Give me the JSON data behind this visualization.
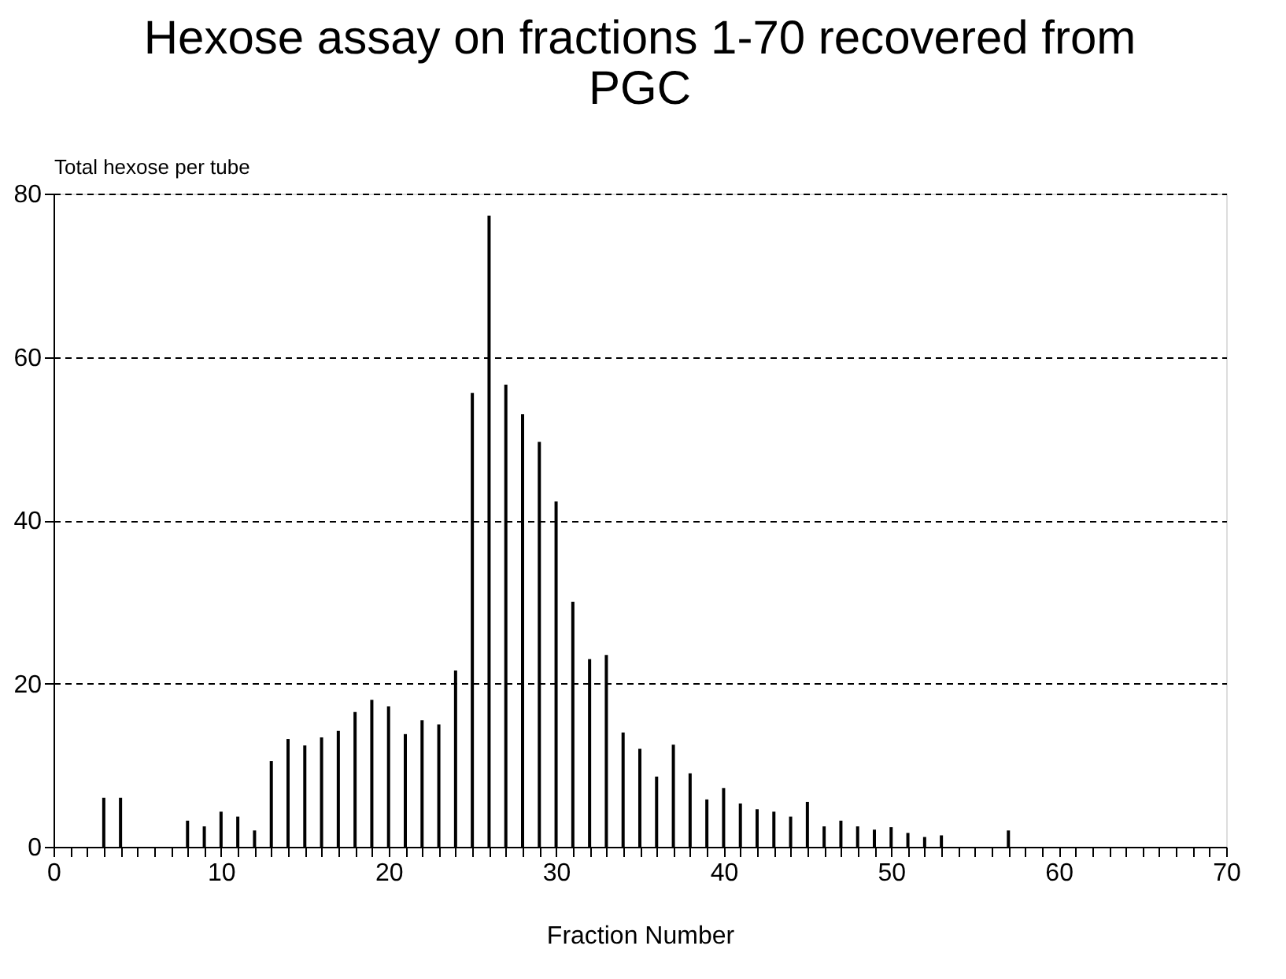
{
  "chart_data": {
    "type": "bar",
    "title": "Hexose assay on fractions 1-70 recovered from PGC",
    "xlabel": "Fraction Number",
    "ylabel": "Total hexose per tube",
    "x": [
      1,
      2,
      3,
      4,
      5,
      6,
      7,
      8,
      9,
      10,
      11,
      12,
      13,
      14,
      15,
      16,
      17,
      18,
      19,
      20,
      21,
      22,
      23,
      24,
      25,
      26,
      27,
      28,
      29,
      30,
      31,
      32,
      33,
      34,
      35,
      36,
      37,
      38,
      39,
      40,
      41,
      42,
      43,
      44,
      45,
      46,
      47,
      48,
      49,
      50,
      51,
      52,
      53,
      54,
      55,
      56,
      57,
      58,
      59,
      60,
      61,
      62,
      63,
      64,
      65,
      66,
      67,
      68,
      69,
      70
    ],
    "values": [
      0,
      0,
      6,
      6,
      0,
      0,
      0,
      3.2,
      2.5,
      4.3,
      3.7,
      2,
      10.5,
      13.2,
      12.4,
      13.4,
      14.2,
      16.5,
      18,
      17.2,
      13.8,
      15.5,
      15,
      21.6,
      55.6,
      77.3,
      56.6,
      53,
      49.6,
      42.3,
      30,
      23,
      23.5,
      14,
      12,
      8.6,
      12.5,
      9,
      5.8,
      7.2,
      5.3,
      4.6,
      4.3,
      3.7,
      5.5,
      2.5,
      3.2,
      2.5,
      2.1,
      2.4,
      1.7,
      1.2,
      1.4,
      0,
      0,
      0,
      2,
      0,
      0,
      0,
      0,
      0,
      0,
      0,
      0,
      0,
      0,
      0,
      0,
      0
    ],
    "color": "#000000",
    "xlim": [
      0,
      70
    ],
    "xticks": [
      0,
      {
        "value": 1,
        "label": null
      },
      {
        "value": 2,
        "label": null
      },
      {
        "value": 3,
        "label": null
      },
      {
        "value": 4,
        "label": null
      },
      {
        "value": 5,
        "label": null
      },
      {
        "value": 6,
        "label": null
      },
      {
        "value": 7,
        "label": null
      },
      {
        "value": 8,
        "label": null
      },
      {
        "value": 9,
        "label": null
      },
      10,
      {
        "value": 11,
        "label": null
      },
      {
        "value": 12,
        "label": null
      },
      {
        "value": 13,
        "label": null
      },
      {
        "value": 14,
        "label": null
      },
      {
        "value": 15,
        "label": null
      },
      {
        "value": 16,
        "label": null
      },
      {
        "value": 17,
        "label": null
      },
      {
        "value": 18,
        "label": null
      },
      {
        "value": 19,
        "label": null
      },
      20,
      {
        "value": 21,
        "label": null
      },
      {
        "value": 22,
        "label": null
      },
      {
        "value": 23,
        "label": null
      },
      {
        "value": 24,
        "label": null
      },
      {
        "value": 25,
        "label": null
      },
      {
        "value": 26,
        "label": null
      },
      {
        "value": 27,
        "label": null
      },
      {
        "value": 28,
        "label": null
      },
      {
        "value": 29,
        "label": null
      },
      30,
      {
        "value": 31,
        "label": null
      },
      {
        "value": 32,
        "label": null
      },
      {
        "value": 33,
        "label": null
      },
      {
        "value": 34,
        "label": null
      },
      {
        "value": 35,
        "label": null
      },
      {
        "value": 36,
        "label": null
      },
      {
        "value": 37,
        "label": null
      },
      {
        "value": 38,
        "label": null
      },
      {
        "value": 39,
        "label": null
      },
      40,
      {
        "value": 41,
        "label": null
      },
      {
        "value": 42,
        "label": null
      },
      {
        "value": 43,
        "label": null
      },
      {
        "value": 44,
        "label": null
      },
      {
        "value": 45,
        "label": null
      },
      {
        "value": 46,
        "label": null
      },
      {
        "value": 47,
        "label": null
      },
      {
        "value": 48,
        "label": null
      },
      {
        "value": 49,
        "label": null
      },
      50,
      {
        "value": 51,
        "label": null
      },
      {
        "value": 52,
        "label": null
      },
      {
        "value": 53,
        "label": null
      },
      {
        "value": 54,
        "label": null
      },
      {
        "value": 55,
        "label": null
      },
      {
        "value": 56,
        "label": null
      },
      {
        "value": 57,
        "label": null
      },
      {
        "value": 58,
        "label": null
      },
      {
        "value": 59,
        "label": null
      },
      60,
      {
        "value": 61,
        "label": null
      },
      {
        "value": 62,
        "label": null
      },
      {
        "value": 63,
        "label": null
      },
      {
        "value": 64,
        "label": null
      },
      {
        "value": 65,
        "label": null
      },
      {
        "value": 66,
        "label": null
      },
      {
        "value": 67,
        "label": null
      },
      {
        "value": 68,
        "label": null
      },
      {
        "value": 69,
        "label": null
      },
      70
    ],
    "ylim": [
      0,
      80
    ],
    "yticks": [
      0,
      20,
      40,
      60,
      80
    ],
    "grid": "y"
  }
}
